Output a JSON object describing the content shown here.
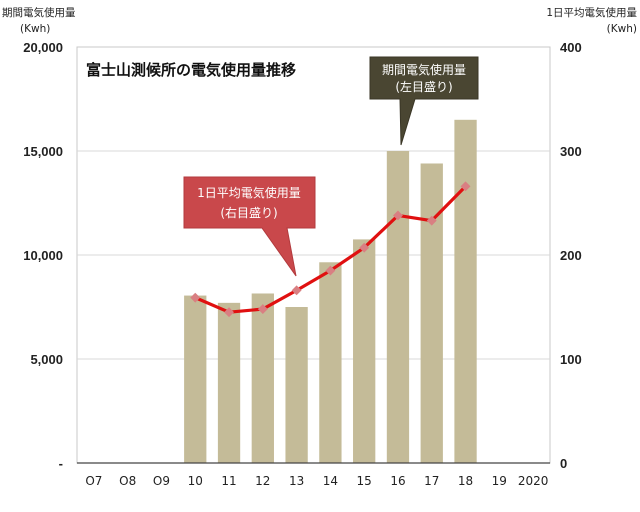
{
  "chart_data": {
    "type": "bar",
    "title": "富士山測候所の電気使用量推移",
    "categories": [
      "O7",
      "O8",
      "O9",
      "10",
      "11",
      "12",
      "13",
      "14",
      "15",
      "16",
      "17",
      "18",
      "19",
      "2020"
    ],
    "left_axis": {
      "title_line1": "期間電気使用量",
      "title_line2": "(Kwh)",
      "ticks": [
        "-",
        "5,000",
        "10,000",
        "15,000",
        "20,000"
      ],
      "ylim": [
        0,
        20000
      ]
    },
    "right_axis": {
      "title_line1": "1日平均電気使用量",
      "title_line2": "(Kwh)",
      "ticks": [
        "0",
        "100",
        "200",
        "300",
        "400"
      ],
      "ylim": [
        0,
        400
      ]
    },
    "series": [
      {
        "kind": "bar",
        "axis": "left",
        "values": [
          null,
          null,
          null,
          8050,
          7700,
          8150,
          7500,
          9650,
          10750,
          15000,
          14400,
          16500,
          null,
          null
        ]
      },
      {
        "kind": "line",
        "axis": "right",
        "values": [
          null,
          null,
          null,
          159,
          145,
          148,
          166,
          185,
          207,
          238,
          233,
          266,
          null,
          null
        ]
      }
    ],
    "callouts": [
      {
        "line1": "期間電気使用量",
        "line2": "(左目盛り)",
        "color": "#4a4632"
      },
      {
        "line1": "1日平均電気使用量",
        "line2": "(右目盛り)",
        "color": "#c9484b"
      }
    ],
    "colors": {
      "bar": "#c4bb98",
      "line": "#e01010",
      "marker": "#d97f82",
      "grid": "#d9d9d9",
      "plot_border": "#c8c8c8"
    },
    "grid": true
  }
}
